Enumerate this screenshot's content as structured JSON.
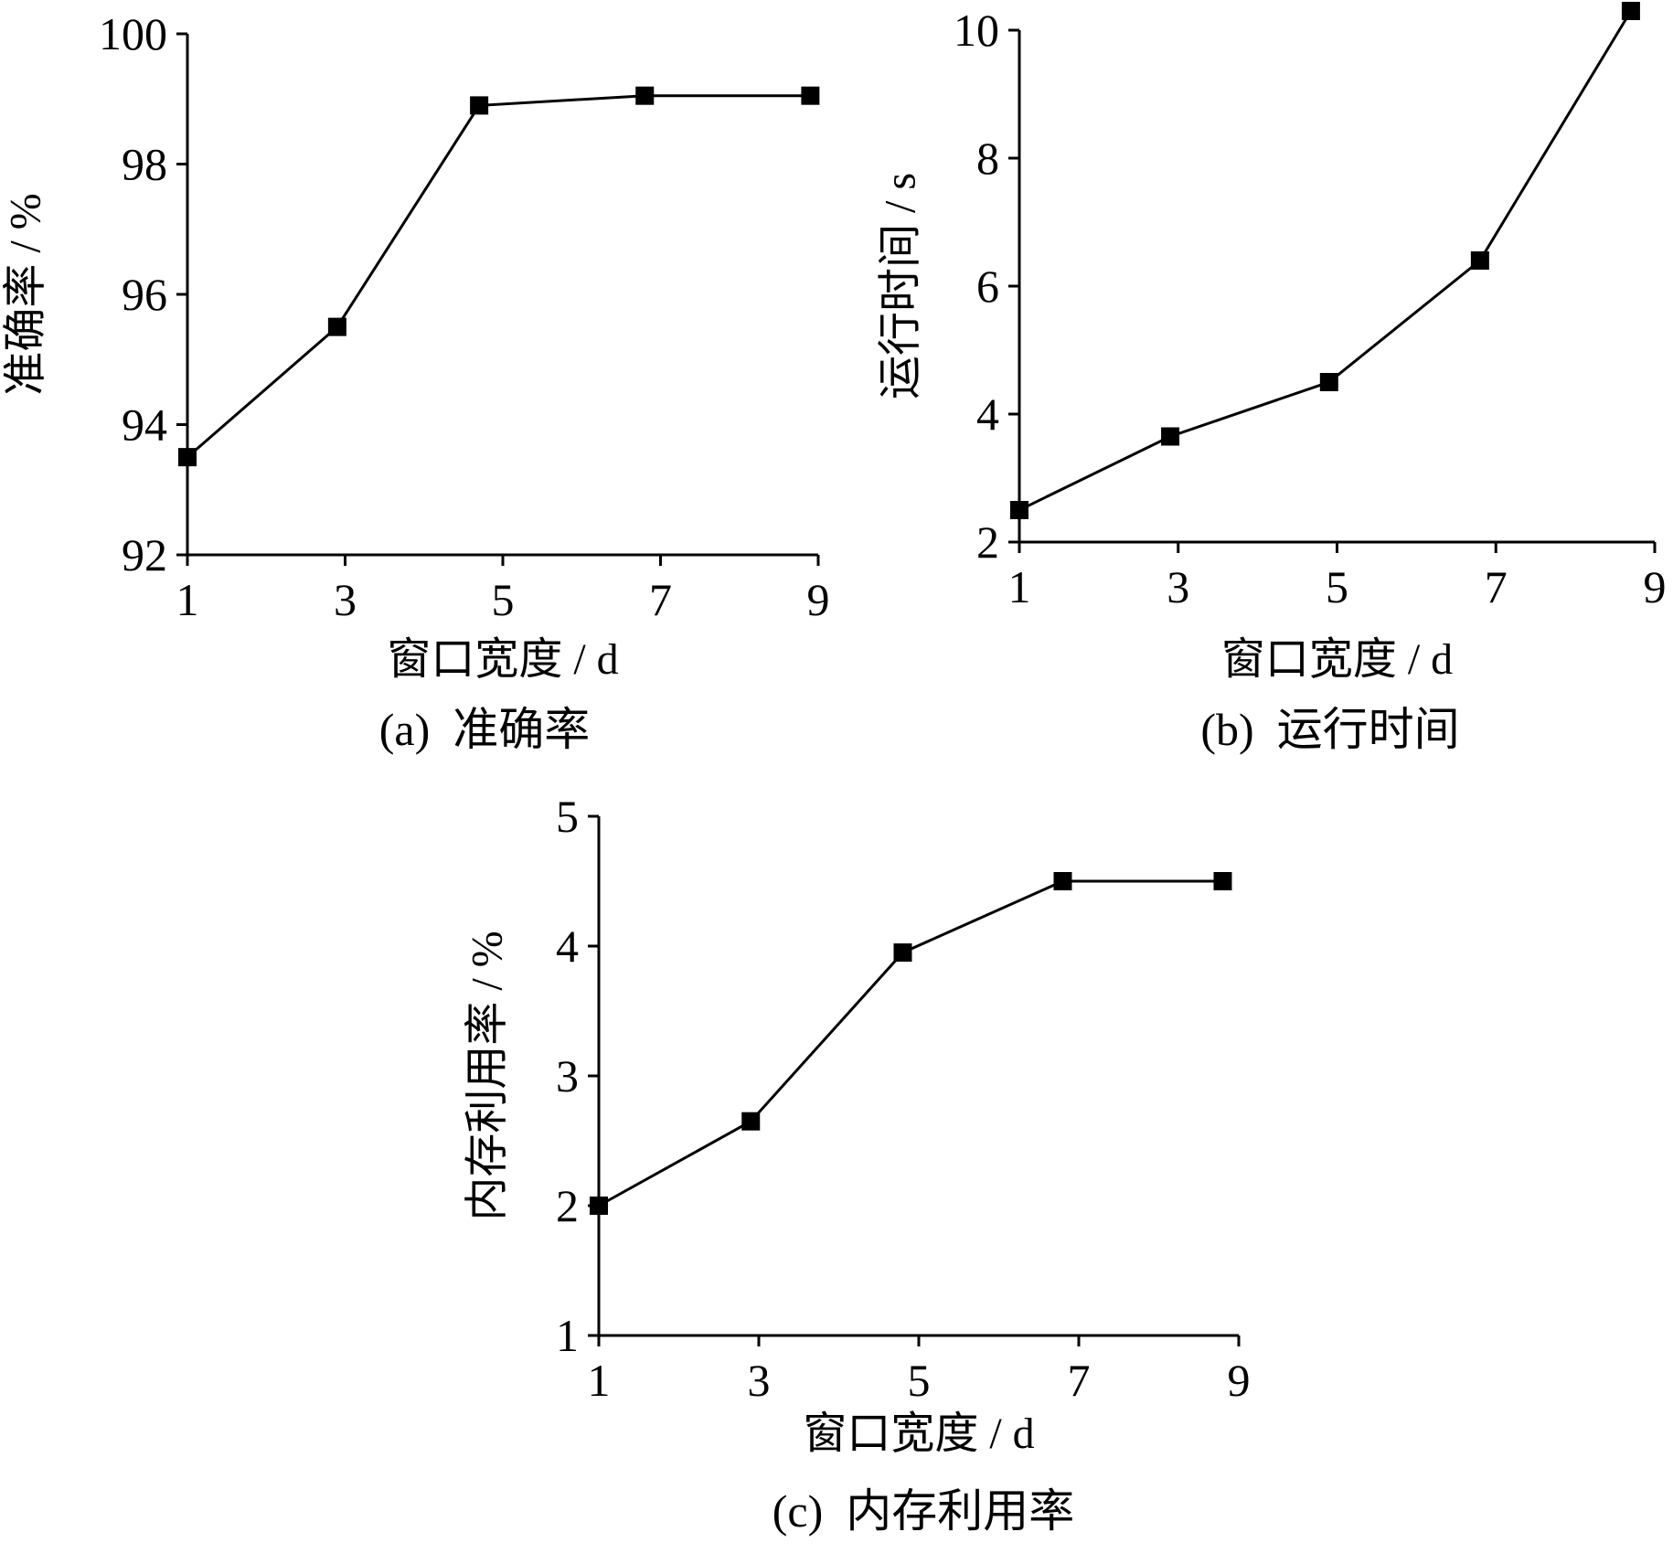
{
  "chart_data": [
    {
      "id": "a",
      "type": "line",
      "caption": "(a)  准确率",
      "xlabel": "窗口宽度 / d",
      "ylabel": "准确率 / %",
      "xlim": [
        1,
        9
      ],
      "ylim": [
        92,
        100
      ],
      "x_ticks": [
        1,
        3,
        5,
        7,
        9
      ],
      "y_ticks": [
        92,
        94,
        96,
        98,
        100
      ],
      "grid": false,
      "legend": "none",
      "series": [
        {
          "x": [
            1,
            2.9,
            4.7,
            6.8,
            8.9
          ],
          "y": [
            93.5,
            95.5,
            98.9,
            99.05,
            99.05
          ],
          "marker": "square"
        }
      ]
    },
    {
      "id": "b",
      "type": "line",
      "caption": "(b)  运行时间",
      "xlabel": "窗口宽度 / d",
      "ylabel": "运行时间 / s",
      "xlim": [
        1,
        9
      ],
      "ylim": [
        2,
        10
      ],
      "x_ticks": [
        1,
        3,
        5,
        7,
        9
      ],
      "y_ticks": [
        2,
        4,
        6,
        8,
        10
      ],
      "grid": false,
      "legend": "none",
      "series": [
        {
          "x": [
            1,
            2.9,
            4.9,
            6.8,
            8.7
          ],
          "y": [
            2.5,
            3.65,
            4.5,
            6.4,
            10.3
          ],
          "marker": "square"
        }
      ]
    },
    {
      "id": "c",
      "type": "line",
      "caption": "(c)  内存利用率",
      "xlabel": "窗口宽度 / d",
      "ylabel": "内存利用率 / %",
      "xlim": [
        1,
        9
      ],
      "ylim": [
        1,
        5
      ],
      "x_ticks": [
        1,
        3,
        5,
        7,
        9
      ],
      "y_ticks": [
        1,
        2,
        3,
        4,
        5
      ],
      "grid": false,
      "legend": "none",
      "series": [
        {
          "x": [
            1,
            2.9,
            4.8,
            6.8,
            8.8
          ],
          "y": [
            2.0,
            2.65,
            3.95,
            4.5,
            4.5
          ],
          "marker": "square"
        }
      ]
    }
  ]
}
